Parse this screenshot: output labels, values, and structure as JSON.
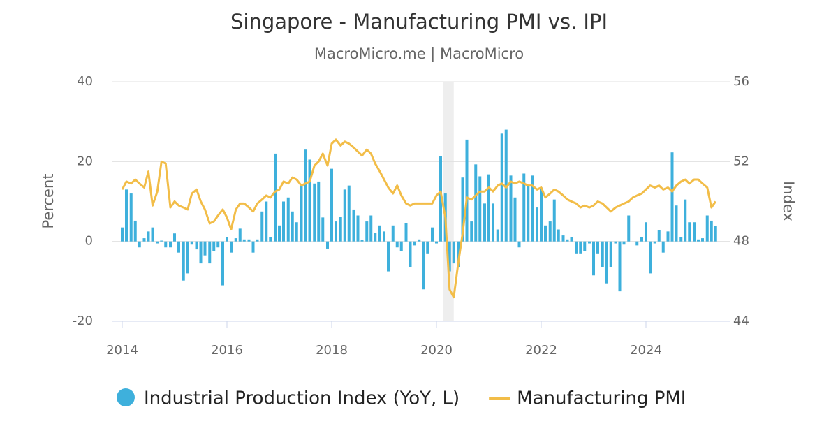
{
  "chart_data": {
    "type": "combo",
    "title": "Singapore - Manufacturing PMI vs. IPI",
    "subtitle": "MacroMicro.me | MacroMicro",
    "y_label": "Percent",
    "y2_label": "Index",
    "xlim": [
      2013.8,
      2025.6
    ],
    "xticks": [
      2014,
      2016,
      2018,
      2020,
      2022,
      2024
    ],
    "ylim": [
      -20,
      40
    ],
    "yticks": [
      -20,
      0,
      20,
      40
    ],
    "y2lim": [
      44,
      56
    ],
    "y2ticks": [
      44,
      48,
      52,
      56
    ],
    "grid": true,
    "shade": [
      2020.12,
      2020.33
    ],
    "shade_color": "#eeeeee",
    "x": [
      2014,
      2014.08,
      2014.17,
      2014.25,
      2014.33,
      2014.42,
      2014.5,
      2014.58,
      2014.67,
      2014.75,
      2014.83,
      2014.92,
      2015,
      2015.08,
      2015.17,
      2015.25,
      2015.33,
      2015.42,
      2015.5,
      2015.58,
      2015.67,
      2015.75,
      2015.83,
      2015.92,
      2016,
      2016.08,
      2016.17,
      2016.25,
      2016.33,
      2016.42,
      2016.5,
      2016.58,
      2016.67,
      2016.75,
      2016.83,
      2016.92,
      2017,
      2017.08,
      2017.17,
      2017.25,
      2017.33,
      2017.42,
      2017.5,
      2017.58,
      2017.67,
      2017.75,
      2017.83,
      2017.92,
      2018,
      2018.08,
      2018.17,
      2018.25,
      2018.33,
      2018.42,
      2018.5,
      2018.58,
      2018.67,
      2018.75,
      2018.83,
      2018.92,
      2019,
      2019.08,
      2019.17,
      2019.25,
      2019.33,
      2019.42,
      2019.5,
      2019.58,
      2019.67,
      2019.75,
      2019.83,
      2019.92,
      2020,
      2020.08,
      2020.17,
      2020.25,
      2020.33,
      2020.42,
      2020.5,
      2020.58,
      2020.67,
      2020.75,
      2020.83,
      2020.92,
      2021,
      2021.08,
      2021.17,
      2021.25,
      2021.33,
      2021.42,
      2021.5,
      2021.58,
      2021.67,
      2021.75,
      2021.83,
      2021.92,
      2022,
      2022.08,
      2022.17,
      2022.25,
      2022.33,
      2022.42,
      2022.5,
      2022.58,
      2022.67,
      2022.75,
      2022.83,
      2022.92,
      2023,
      2023.08,
      2023.17,
      2023.25,
      2023.33,
      2023.42,
      2023.5,
      2023.58,
      2023.67,
      2023.75,
      2023.83,
      2023.92,
      2024,
      2024.08,
      2024.17,
      2024.25,
      2024.33,
      2024.42,
      2024.5,
      2024.58,
      2024.67,
      2024.75,
      2024.83,
      2024.92,
      2025,
      2025.08,
      2025.17,
      2025.25,
      2025.33
    ],
    "series": [
      {
        "name": "Industrial Production Index (YoY, L)",
        "type": "bar",
        "color": "#3eb0dc",
        "values": [
          3.5,
          13,
          12,
          5.2,
          -1.5,
          0.8,
          2.5,
          3.5,
          -0.5,
          0.2,
          -1.5,
          -1.5,
          2,
          -2.8,
          -9.8,
          -8,
          -0.8,
          -2,
          -5.5,
          -3.5,
          -5.5,
          -2.5,
          -1.5,
          -11,
          1,
          -2.8,
          0.8,
          3.2,
          0.5,
          0.5,
          -2.8,
          0.5,
          7.5,
          10,
          1,
          22,
          4,
          10,
          11,
          7.5,
          4.8,
          14,
          23,
          20.5,
          14.5,
          15,
          6,
          -1.8,
          18.2,
          5,
          6.2,
          13,
          14,
          8,
          6.5,
          0.3,
          5,
          6.5,
          2.2,
          4,
          2.5,
          -7.5,
          4,
          -1.5,
          -2.5,
          4.5,
          -6.5,
          -1,
          0.5,
          -12,
          -3,
          3.5,
          -0.5,
          21.3,
          12,
          -7.5,
          -5.5,
          -6.5,
          16,
          25.5,
          5,
          19.3,
          16.3,
          9.5,
          16.8,
          9.5,
          3,
          27,
          28,
          16.5,
          11,
          -1.5,
          17,
          14,
          16.5,
          8.5,
          13.5,
          4,
          5,
          10.5,
          3,
          1.5,
          0.5,
          1,
          -3,
          -3,
          -2.5,
          -0.5,
          -8.5,
          -3,
          -6.5,
          -10.5,
          -6.5,
          -0.5,
          -12.5,
          -0.8,
          6.5,
          0,
          -1,
          1,
          4.8,
          -8,
          -0.5,
          2.8,
          -2.8,
          2.5,
          22.3,
          9,
          1,
          10.5,
          4.8,
          4.8,
          0.5,
          0.8,
          6.5,
          5.2,
          3.8
        ]
      },
      {
        "name": "Manufacturing PMI",
        "type": "line",
        "axis": "y2",
        "color": "#f2bd48",
        "values": [
          50.6,
          51.0,
          50.9,
          51.1,
          50.9,
          50.7,
          51.5,
          49.8,
          50.5,
          52.0,
          51.9,
          49.7,
          50.0,
          49.8,
          49.7,
          49.6,
          50.4,
          50.6,
          50.0,
          49.6,
          48.9,
          49.0,
          49.3,
          49.6,
          49.2,
          48.6,
          49.6,
          49.9,
          49.9,
          49.7,
          49.5,
          49.9,
          50.1,
          50.3,
          50.2,
          50.5,
          50.6,
          51.0,
          50.9,
          51.2,
          51.1,
          50.8,
          50.9,
          51.0,
          51.8,
          52.0,
          52.4,
          51.8,
          52.9,
          53.1,
          52.8,
          53.0,
          52.9,
          52.7,
          52.5,
          52.3,
          52.6,
          52.4,
          51.9,
          51.5,
          51.1,
          50.7,
          50.4,
          50.8,
          50.3,
          49.9,
          49.8,
          49.9,
          49.9,
          49.9,
          49.9,
          49.9,
          50.3,
          50.5,
          49.2,
          45.6,
          45.2,
          47.0,
          48.4,
          50.2,
          50.1,
          50.3,
          50.5,
          50.5,
          50.7,
          50.5,
          50.8,
          50.9,
          50.7,
          51.0,
          50.9,
          51.0,
          50.9,
          50.8,
          50.8,
          50.6,
          50.7,
          50.2,
          50.4,
          50.6,
          50.5,
          50.3,
          50.1,
          50.0,
          49.9,
          49.7,
          49.8,
          49.7,
          49.8,
          50.0,
          49.9,
          49.7,
          49.5,
          49.7,
          49.8,
          49.9,
          50.0,
          50.2,
          50.3,
          50.4,
          50.6,
          50.8,
          50.7,
          50.8,
          50.6,
          50.7,
          50.5,
          50.8,
          51.0,
          51.1,
          50.9,
          51.1,
          51.1,
          50.9,
          50.7,
          49.7,
          50.0
        ]
      }
    ]
  }
}
